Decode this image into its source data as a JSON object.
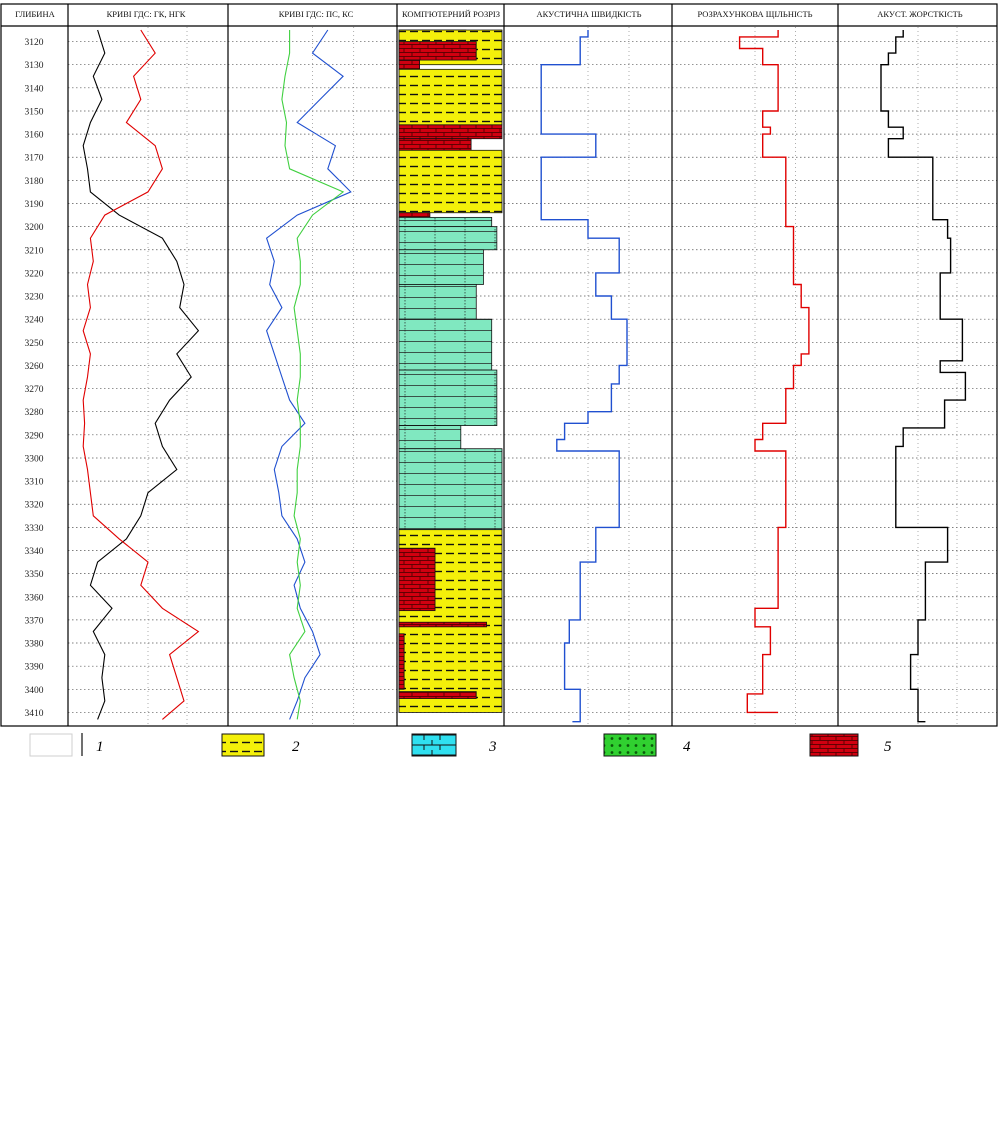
{
  "chart_data": {
    "type": "line",
    "headers": [
      "ГЛИБИНА",
      "КРИВІ ГДС: ГК, НГК",
      "КРИВІ ГДС: ПС, КС",
      "КОМП'ЮТЕРНИЙ РОЗРІЗ",
      "АКУСТИЧНА ШВИДКІСТЬ",
      "РОЗРАХУНКОВА ЩІЛЬНІСТЬ",
      "АКУСТ. ЖОРСТКІСТЬ"
    ],
    "depth_range": [
      3115,
      3415
    ],
    "depth_ticks": [
      3120,
      3130,
      3140,
      3150,
      3160,
      3170,
      3180,
      3190,
      3200,
      3210,
      3220,
      3230,
      3240,
      3250,
      3260,
      3270,
      3280,
      3290,
      3300,
      3310,
      3320,
      3330,
      3340,
      3350,
      3360,
      3370,
      3380,
      3390,
      3400,
      3410
    ],
    "grid": true,
    "lithology": [
      {
        "from": 3115,
        "to": 3120,
        "rock": "5",
        "width": 0.65
      },
      {
        "from": 3115,
        "to": 3130,
        "rock": "2",
        "width": 1.0
      },
      {
        "from": 3120,
        "to": 3128,
        "rock": "5",
        "width": 0.75
      },
      {
        "from": 3128,
        "to": 3132,
        "rock": "5",
        "width": 0.2
      },
      {
        "from": 3132,
        "to": 3156,
        "rock": "2",
        "width": 1.0
      },
      {
        "from": 3156,
        "to": 3162,
        "rock": "5",
        "width": 1.0
      },
      {
        "from": 3162,
        "to": 3167,
        "rock": "5",
        "width": 0.7
      },
      {
        "from": 3167,
        "to": 3194,
        "rock": "2",
        "width": 1.0
      },
      {
        "from": 3194,
        "to": 3196,
        "rock": "5",
        "width": 0.3
      },
      {
        "from": 3196,
        "to": 3200,
        "rock": "3",
        "width": 0.9
      },
      {
        "from": 3200,
        "to": 3210,
        "rock": "3",
        "width": 0.95
      },
      {
        "from": 3210,
        "to": 3225,
        "rock": "3",
        "width": 0.82
      },
      {
        "from": 3225,
        "to": 3240,
        "rock": "3",
        "width": 0.75
      },
      {
        "from": 3240,
        "to": 3262,
        "rock": "3",
        "width": 0.9
      },
      {
        "from": 3262,
        "to": 3286,
        "rock": "3",
        "width": 0.95
      },
      {
        "from": 3286,
        "to": 3293,
        "rock": "4",
        "width": 0.4
      },
      {
        "from": 3286,
        "to": 3296,
        "rock": "3",
        "width": 0.6
      },
      {
        "from": 3296,
        "to": 3331,
        "rock": "3",
        "width": 1.0
      },
      {
        "from": 3331,
        "to": 3339,
        "rock": "3",
        "width": 0.65
      },
      {
        "from": 3331,
        "to": 3410,
        "rock": "2",
        "width": 1.0
      },
      {
        "from": 3339,
        "to": 3366,
        "rock": "5",
        "width": 0.35
      },
      {
        "from": 3371,
        "to": 3373,
        "rock": "5",
        "width": 0.85
      },
      {
        "from": 3376,
        "to": 3400,
        "rock": "5",
        "width": 0.05
      },
      {
        "from": 3401,
        "to": 3404,
        "rock": "5",
        "width": 0.75
      }
    ],
    "series": [
      {
        "panel": 1,
        "color": "#000000",
        "depths": [
          3115,
          3125,
          3135,
          3145,
          3155,
          3165,
          3175,
          3185,
          3195,
          3205,
          3215,
          3225,
          3235,
          3245,
          3255,
          3265,
          3275,
          3285,
          3295,
          3305,
          3315,
          3325,
          3335,
          3345,
          3355,
          3365,
          3375,
          3385,
          3395,
          3405,
          3413
        ],
        "values": [
          0.15,
          0.2,
          0.12,
          0.18,
          0.1,
          0.05,
          0.08,
          0.1,
          0.3,
          0.6,
          0.7,
          0.75,
          0.72,
          0.85,
          0.7,
          0.8,
          0.65,
          0.55,
          0.6,
          0.7,
          0.5,
          0.45,
          0.35,
          0.15,
          0.1,
          0.25,
          0.12,
          0.2,
          0.18,
          0.2,
          0.15
        ]
      },
      {
        "panel": 1,
        "color": "#e00000",
        "depths": [
          3115,
          3125,
          3135,
          3145,
          3155,
          3165,
          3175,
          3185,
          3195,
          3205,
          3215,
          3225,
          3235,
          3245,
          3255,
          3265,
          3275,
          3285,
          3295,
          3305,
          3315,
          3325,
          3335,
          3345,
          3355,
          3365,
          3375,
          3385,
          3395,
          3405,
          3413
        ],
        "values": [
          0.45,
          0.55,
          0.4,
          0.45,
          0.35,
          0.55,
          0.6,
          0.5,
          0.2,
          0.1,
          0.12,
          0.08,
          0.1,
          0.05,
          0.1,
          0.08,
          0.05,
          0.06,
          0.05,
          0.08,
          0.1,
          0.12,
          0.3,
          0.5,
          0.45,
          0.6,
          0.85,
          0.65,
          0.7,
          0.75,
          0.6
        ]
      },
      {
        "panel": 2,
        "color": "#2050d0",
        "depths": [
          3115,
          3125,
          3135,
          3145,
          3155,
          3165,
          3175,
          3185,
          3195,
          3205,
          3215,
          3225,
          3235,
          3245,
          3255,
          3265,
          3275,
          3285,
          3295,
          3305,
          3315,
          3325,
          3335,
          3345,
          3355,
          3365,
          3375,
          3385,
          3395,
          3405,
          3413
        ],
        "values": [
          0.6,
          0.5,
          0.7,
          0.55,
          0.4,
          0.65,
          0.6,
          0.75,
          0.4,
          0.2,
          0.25,
          0.22,
          0.3,
          0.2,
          0.25,
          0.3,
          0.35,
          0.45,
          0.3,
          0.25,
          0.28,
          0.3,
          0.4,
          0.45,
          0.38,
          0.42,
          0.5,
          0.55,
          0.45,
          0.4,
          0.35
        ]
      },
      {
        "panel": 2,
        "color": "#40d040",
        "depths": [
          3115,
          3125,
          3135,
          3145,
          3155,
          3165,
          3175,
          3185,
          3195,
          3205,
          3215,
          3225,
          3235,
          3245,
          3255,
          3265,
          3275,
          3285,
          3295,
          3305,
          3315,
          3325,
          3335,
          3345,
          3355,
          3365,
          3375,
          3385,
          3395,
          3405,
          3413
        ],
        "values": [
          0.35,
          0.35,
          0.32,
          0.3,
          0.33,
          0.32,
          0.35,
          0.7,
          0.5,
          0.4,
          0.42,
          0.42,
          0.38,
          0.4,
          0.42,
          0.42,
          0.4,
          0.42,
          0.42,
          0.4,
          0.4,
          0.38,
          0.42,
          0.4,
          0.42,
          0.4,
          0.45,
          0.35,
          0.38,
          0.42,
          0.4
        ]
      },
      {
        "panel": 4,
        "color": "#2050d0",
        "depths": [
          3115,
          3118,
          3130,
          3150,
          3160,
          3170,
          3197,
          3205,
          3220,
          3230,
          3240,
          3260,
          3268,
          3280,
          3285,
          3292,
          3297,
          3330,
          3345,
          3370,
          3380,
          3400,
          3414
        ],
        "values": [
          0.5,
          0.45,
          0.2,
          0.2,
          0.55,
          0.2,
          0.5,
          0.7,
          0.55,
          0.65,
          0.75,
          0.7,
          0.65,
          0.5,
          0.35,
          0.3,
          0.7,
          0.55,
          0.45,
          0.38,
          0.35,
          0.45,
          0.4
        ]
      },
      {
        "panel": 5,
        "color": "#e00000",
        "depths": [
          3115,
          3118,
          3123,
          3130,
          3150,
          3157,
          3160,
          3170,
          3195,
          3200,
          3225,
          3235,
          3255,
          3260,
          3270,
          3285,
          3292,
          3297,
          3330,
          3365,
          3373,
          3385,
          3402,
          3410
        ],
        "values": [
          0.65,
          0.4,
          0.55,
          0.65,
          0.55,
          0.6,
          0.55,
          0.7,
          0.7,
          0.75,
          0.8,
          0.85,
          0.8,
          0.75,
          0.7,
          0.55,
          0.5,
          0.7,
          0.65,
          0.5,
          0.6,
          0.55,
          0.45,
          0.65
        ]
      },
      {
        "panel": 6,
        "color": "#000000",
        "depths": [
          3115,
          3118,
          3125,
          3130,
          3150,
          3157,
          3162,
          3170,
          3197,
          3205,
          3220,
          3240,
          3258,
          3263,
          3275,
          3287,
          3295,
          3330,
          3345,
          3370,
          3385,
          3400,
          3414
        ],
        "values": [
          0.4,
          0.35,
          0.3,
          0.25,
          0.3,
          0.4,
          0.3,
          0.6,
          0.7,
          0.72,
          0.65,
          0.8,
          0.65,
          0.82,
          0.68,
          0.4,
          0.35,
          0.7,
          0.55,
          0.5,
          0.45,
          0.5,
          0.55
        ]
      }
    ]
  },
  "legend": [
    {
      "number": "1",
      "swatch": "white"
    },
    {
      "number": "2",
      "swatch": "yellow-dashed"
    },
    {
      "number": "3",
      "swatch": "cyan-blocks"
    },
    {
      "number": "4",
      "swatch": "green-dots"
    },
    {
      "number": "5",
      "swatch": "red-brick"
    }
  ],
  "colors": {
    "sandstone_yellow": "#f4f00a",
    "limestone_teal": "#80e8c0",
    "cyan_legend": "#30e0f0",
    "dolomite_green": "#30d030",
    "brick_red": "#d00010",
    "curve_red": "#e00000",
    "curve_blue": "#2050d0",
    "curve_green": "#40d040"
  }
}
